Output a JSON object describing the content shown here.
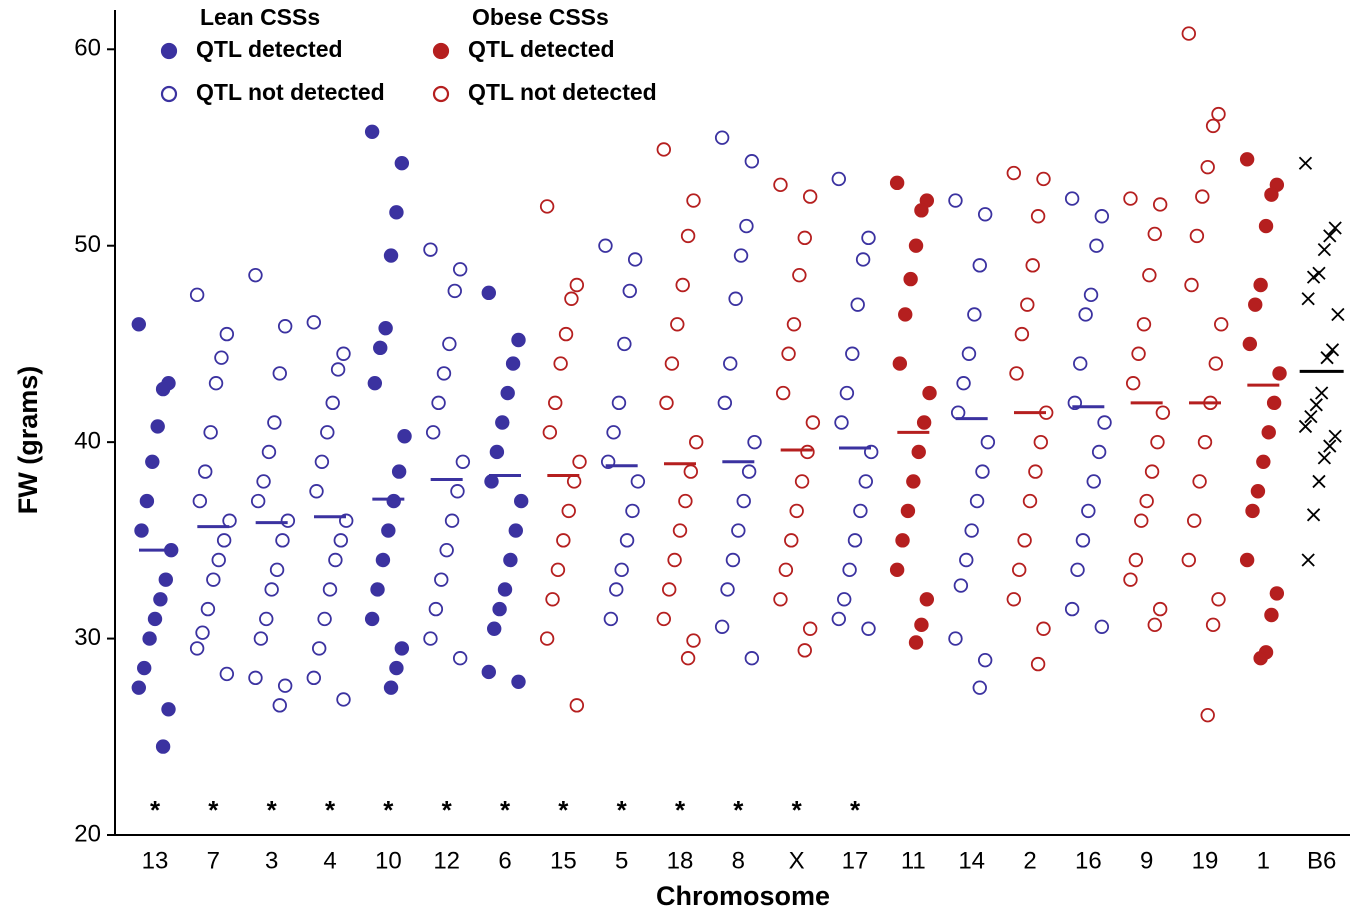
{
  "chart_data": {
    "type": "strip",
    "ylabel": "FW (grams)",
    "xlabel": "Chromosome",
    "ylim": [
      20,
      62
    ],
    "yticks": [
      20,
      30,
      40,
      50,
      60
    ],
    "legend": [
      {
        "title": "Lean CSSs",
        "color": "#3b32a0",
        "entries": [
          "QTL detected",
          "QTL not detected"
        ]
      },
      {
        "title": "Obese CSSs",
        "color": "#b51f1f",
        "entries": [
          "QTL detected",
          "QTL not detected"
        ]
      }
    ],
    "groups": [
      {
        "category": "13",
        "color": "#3b32a0",
        "marker": "filled",
        "mean": 34.5,
        "annotation": "*",
        "values": [
          46.0,
          43.0,
          42.7,
          40.8,
          39.0,
          37.0,
          35.5,
          34.5,
          33.0,
          32.0,
          31.0,
          30.0,
          28.5,
          27.5,
          26.4,
          24.5
        ]
      },
      {
        "category": "7",
        "color": "#3b32a0",
        "marker": "open",
        "mean": 35.7,
        "annotation": "*",
        "values": [
          47.5,
          45.5,
          44.3,
          43.0,
          40.5,
          38.5,
          37.0,
          36.0,
          35.0,
          34.0,
          33.0,
          31.5,
          30.3,
          29.5,
          28.2
        ]
      },
      {
        "category": "3",
        "color": "#3b32a0",
        "marker": "open",
        "mean": 35.9,
        "annotation": "*",
        "values": [
          48.5,
          45.9,
          43.5,
          41.0,
          39.5,
          38.0,
          37.0,
          36.0,
          35.0,
          33.5,
          32.5,
          31.0,
          30.0,
          28.0,
          27.6,
          26.6
        ]
      },
      {
        "category": "4",
        "color": "#3b32a0",
        "marker": "open",
        "mean": 36.2,
        "annotation": "*",
        "values": [
          46.1,
          44.5,
          43.7,
          42.0,
          40.5,
          39.0,
          37.5,
          36.0,
          35.0,
          34.0,
          32.5,
          31.0,
          29.5,
          28.0,
          26.9
        ]
      },
      {
        "category": "10",
        "color": "#3b32a0",
        "marker": "filled",
        "mean": 37.1,
        "annotation": "*",
        "values": [
          55.8,
          54.2,
          51.7,
          49.5,
          45.8,
          44.8,
          43.0,
          40.3,
          38.5,
          37.0,
          35.5,
          34.0,
          32.5,
          31.0,
          29.5,
          28.5,
          27.5
        ]
      },
      {
        "category": "12",
        "color": "#3b32a0",
        "marker": "open",
        "mean": 38.1,
        "annotation": "*",
        "values": [
          49.8,
          48.8,
          47.7,
          45.0,
          43.5,
          42.0,
          40.5,
          39.0,
          37.5,
          36.0,
          34.5,
          33.0,
          31.5,
          30.0,
          29.0
        ]
      },
      {
        "category": "6",
        "color": "#3b32a0",
        "marker": "filled",
        "mean": 38.3,
        "annotation": "*",
        "values": [
          47.6,
          45.2,
          44.0,
          42.5,
          41.0,
          39.5,
          38.0,
          37.0,
          35.5,
          34.0,
          32.5,
          31.5,
          30.5,
          28.3,
          27.8
        ]
      },
      {
        "category": "15",
        "color": "#b51f1f",
        "marker": "open",
        "mean": 38.3,
        "annotation": "*",
        "values": [
          52.0,
          48.0,
          47.3,
          45.5,
          44.0,
          42.0,
          40.5,
          39.0,
          38.0,
          36.5,
          35.0,
          33.5,
          32.0,
          30.0,
          26.6
        ]
      },
      {
        "category": "5",
        "color": "#3b32a0",
        "marker": "open",
        "mean": 38.8,
        "annotation": "*",
        "values": [
          50.0,
          49.3,
          47.7,
          45.0,
          42.0,
          40.5,
          39.0,
          38.0,
          36.5,
          35.0,
          33.5,
          32.5,
          31.0
        ]
      },
      {
        "category": "18",
        "color": "#b51f1f",
        "marker": "open",
        "mean": 38.9,
        "annotation": "*",
        "values": [
          54.9,
          52.3,
          50.5,
          48.0,
          46.0,
          44.0,
          42.0,
          40.0,
          38.5,
          37.0,
          35.5,
          34.0,
          32.5,
          31.0,
          29.9,
          29.0
        ]
      },
      {
        "category": "8",
        "color": "#3b32a0",
        "marker": "open",
        "mean": 39.0,
        "annotation": "*",
        "values": [
          55.5,
          54.3,
          51.0,
          49.5,
          47.3,
          44.0,
          42.0,
          40.0,
          38.5,
          37.0,
          35.5,
          34.0,
          32.5,
          30.6,
          29.0
        ]
      },
      {
        "category": "X",
        "color": "#b51f1f",
        "marker": "open",
        "mean": 39.6,
        "annotation": "*",
        "values": [
          53.1,
          52.5,
          50.4,
          48.5,
          46.0,
          44.5,
          42.5,
          41.0,
          39.5,
          38.0,
          36.5,
          35.0,
          33.5,
          32.0,
          30.5,
          29.4
        ]
      },
      {
        "category": "17",
        "color": "#3b32a0",
        "marker": "open",
        "mean": 39.7,
        "annotation": "*",
        "values": [
          53.4,
          50.4,
          49.3,
          47.0,
          44.5,
          42.5,
          41.0,
          39.5,
          38.0,
          36.5,
          35.0,
          33.5,
          32.0,
          31.0,
          30.5
        ]
      },
      {
        "category": "11",
        "color": "#b51f1f",
        "marker": "filled",
        "mean": 40.5,
        "values": [
          53.2,
          52.3,
          51.8,
          50.0,
          48.3,
          46.5,
          44.0,
          42.5,
          41.0,
          39.5,
          38.0,
          36.5,
          35.0,
          33.5,
          32.0,
          30.7,
          29.8
        ]
      },
      {
        "category": "14",
        "color": "#3b32a0",
        "marker": "open",
        "mean": 41.2,
        "values": [
          52.3,
          51.6,
          49.0,
          46.5,
          44.5,
          43.0,
          41.5,
          40.0,
          38.5,
          37.0,
          35.5,
          34.0,
          32.7,
          30.0,
          28.9,
          27.5
        ]
      },
      {
        "category": "2",
        "color": "#b51f1f",
        "marker": "open",
        "mean": 41.5,
        "values": [
          53.7,
          53.4,
          51.5,
          49.0,
          47.0,
          45.5,
          43.5,
          41.5,
          40.0,
          38.5,
          37.0,
          35.0,
          33.5,
          32.0,
          30.5,
          28.7
        ]
      },
      {
        "category": "16",
        "color": "#3b32a0",
        "marker": "open",
        "mean": 41.8,
        "values": [
          52.4,
          51.5,
          50.0,
          47.5,
          46.5,
          44.0,
          42.0,
          41.0,
          39.5,
          38.0,
          36.5,
          35.0,
          33.5,
          31.5,
          30.6
        ]
      },
      {
        "category": "9",
        "color": "#b51f1f",
        "marker": "open",
        "mean": 42.0,
        "values": [
          52.4,
          52.1,
          50.6,
          48.5,
          46.0,
          44.5,
          43.0,
          41.5,
          40.0,
          38.5,
          37.0,
          36.0,
          34.0,
          33.0,
          31.5,
          30.7
        ]
      },
      {
        "category": "19",
        "color": "#b51f1f",
        "marker": "open",
        "mean": 42.0,
        "values": [
          60.8,
          56.7,
          56.1,
          54.0,
          52.5,
          50.5,
          48.0,
          46.0,
          44.0,
          42.0,
          40.0,
          38.0,
          36.0,
          34.0,
          32.0,
          30.7,
          26.1
        ]
      },
      {
        "category": "1",
        "color": "#b51f1f",
        "marker": "filled",
        "mean": 42.9,
        "values": [
          54.4,
          53.1,
          52.6,
          51.0,
          48.0,
          47.0,
          45.0,
          43.5,
          42.0,
          40.5,
          39.0,
          37.5,
          36.5,
          34.0,
          32.3,
          31.2,
          29.3,
          29.0
        ]
      },
      {
        "category": "B6",
        "color": "#000000",
        "marker": "cross",
        "mean": 43.6,
        "values": [
          54.2,
          50.9,
          50.5,
          49.8,
          48.6,
          48.4,
          47.3,
          46.5,
          44.7,
          44.3,
          42.5,
          41.9,
          41.3,
          40.8,
          40.3,
          39.8,
          39.2,
          38.0,
          36.3,
          34.0
        ]
      }
    ]
  }
}
